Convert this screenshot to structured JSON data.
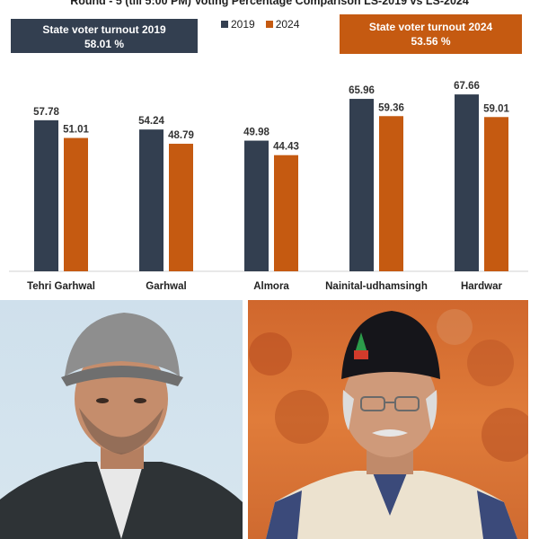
{
  "title": "Round - 5 (till 5:00 PM) Voting Percentage Comparison LS-2019 vs LS-2024",
  "turnout_2019": {
    "label": "State voter turnout 2019",
    "value": "58.01 %"
  },
  "turnout_2024": {
    "label": "State voter turnout 2024",
    "value": "53.56  %"
  },
  "colors": {
    "series_2019": "#333f50",
    "series_2024": "#c55a11"
  },
  "chart_data": {
    "type": "bar",
    "categories": [
      "Tehri Garhwal",
      "Garhwal",
      "Almora",
      "Nainital-udhamsingh",
      "Hardwar"
    ],
    "series": [
      {
        "name": "2019",
        "values": [
          57.78,
          54.24,
          49.98,
          65.96,
          67.66
        ]
      },
      {
        "name": "2024",
        "values": [
          51.01,
          48.79,
          44.43,
          59.36,
          59.01
        ]
      }
    ],
    "value_labels": [
      [
        "57.78",
        "54.24",
        "49.98",
        "65.96",
        "67.66"
      ],
      [
        "51.01",
        "48.79",
        "44.43",
        "59.36",
        "59.01"
      ]
    ],
    "legend": "top-center",
    "grid": false
  }
}
